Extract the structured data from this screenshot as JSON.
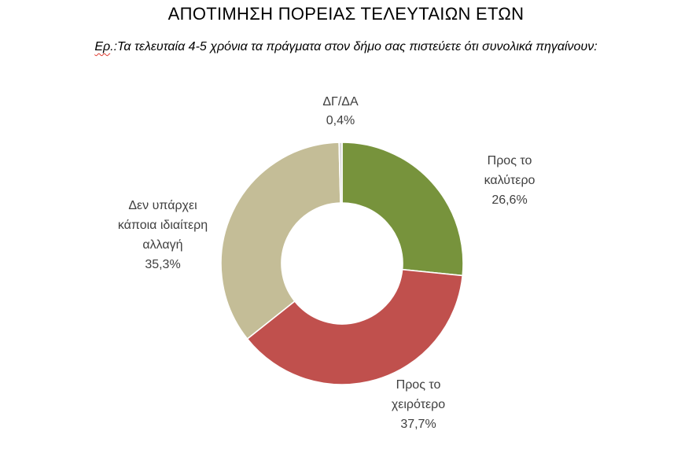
{
  "page": {
    "background_color": "#FFFFFF"
  },
  "header": {
    "subtitle_prefix": "Ερ",
    "subtitle_rest": ".:Τα τελευταία 4-5 χρόνια τα πράγματα στον δήμο σας πιστεύετε ότι συνολικά πηγαίνουν:"
  },
  "chart_data": {
    "type": "pie",
    "variant": "donut",
    "title": "ΑΠΟΤΙΜΗΣΗ ΠΟΡΕΙΑΣ ΤΕΛΕΥΤΑΙΩΝ ΕΤΩΝ",
    "subtitle": "Ερ.:Τα τελευταία 4-5 χρόνια τα πράγματα στον δήμο σας πιστεύετε ότι συνολικά πηγαίνουν:",
    "start_angle_deg": 0,
    "direction": "clockwise",
    "hole_ratio": 0.5,
    "slice_border_color": "#FFFFFF",
    "label_color": "#404040",
    "categories": [
      "Προς το καλύτερο",
      "Προς το χειρότερο",
      "Δεν υπάρχει κάποια ιδιαίτερη αλλαγή",
      "ΔΓ/ΔΑ"
    ],
    "values": [
      26.6,
      37.7,
      35.3,
      0.4
    ],
    "slices": [
      {
        "name": "Προς το καλύτερο",
        "value_pct": 26.6,
        "color": "#77933C",
        "label_text": "Προς το\nκαλύτερο\n26,6%"
      },
      {
        "name": "Προς το χειρότερο",
        "value_pct": 37.7,
        "color": "#C0504D",
        "label_text": "Προς το\nχειρότερο\n37,7%"
      },
      {
        "name": "Δεν υπάρχει κάποια ιδιαίτερη αλλαγή",
        "value_pct": 35.3,
        "color": "#C4BD97",
        "label_text": "Δεν υπάρχει\nκάποια ιδιαίτερη\nαλλαγή\n35,3%"
      },
      {
        "name": "ΔΓ/ΔΑ",
        "value_pct": 0.4,
        "color": "#D9D9D9",
        "label_text": "ΔΓ/ΔΑ\n0,4%"
      }
    ]
  }
}
